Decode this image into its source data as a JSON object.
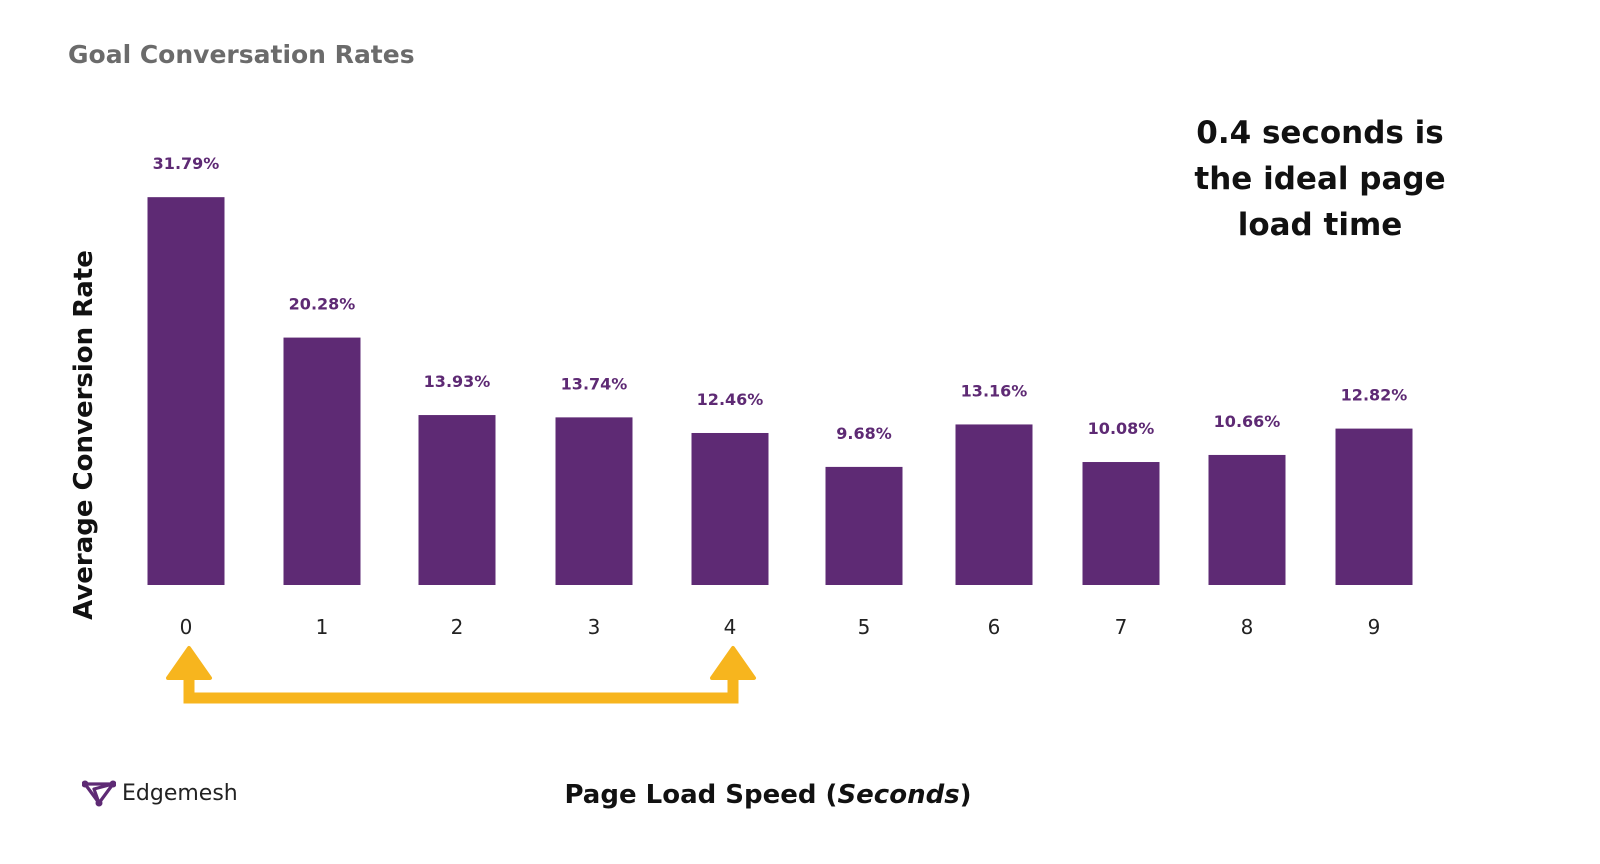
{
  "chart_data": {
    "type": "bar",
    "title": "Goal Conversation Rates",
    "xlabel": "Page Load Speed",
    "xlabel_unit": "Seconds",
    "ylabel": "Average Conversion Rate",
    "categories": [
      "0",
      "1",
      "2",
      "3",
      "4",
      "5",
      "6",
      "7",
      "8",
      "9"
    ],
    "values": [
      31.79,
      20.28,
      13.93,
      13.74,
      12.46,
      9.68,
      13.16,
      10.08,
      10.66,
      12.82
    ],
    "data_labels": [
      "31.79%",
      "20.28%",
      "13.93%",
      "13.74%",
      "12.46%",
      "9.68%",
      "13.16%",
      "10.08%",
      "10.66%",
      "12.82%"
    ],
    "grid": false,
    "legend": "none",
    "annotation": {
      "lines": [
        "0.4 seconds is",
        "the ideal page",
        "load time"
      ],
      "arrow_from": "0",
      "arrow_to": "4"
    },
    "bar_color": "#5e2a74",
    "label_color": "#5e2a74",
    "arrow_color": "#f7b51e"
  },
  "brand": {
    "name": "Edgemesh",
    "icon": "edgemesh-logo-icon",
    "color": "#5e2a74"
  }
}
